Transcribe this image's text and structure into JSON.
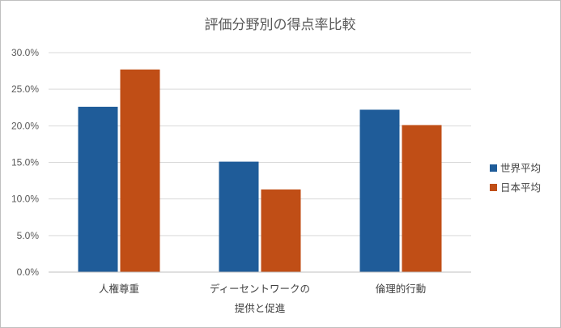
{
  "chart_data": {
    "type": "bar",
    "title": "評価分野別の得点率比較",
    "categories": [
      [
        "人権尊重"
      ],
      [
        "ディーセントワークの",
        "提供と促進"
      ],
      [
        "倫理的行動"
      ]
    ],
    "series": [
      {
        "name": "世界平均",
        "color": "#1f5c99",
        "values": [
          22.6,
          15.1,
          22.2
        ]
      },
      {
        "name": "日本平均",
        "color": "#c04e16",
        "values": [
          27.7,
          11.3,
          20.1
        ]
      }
    ],
    "ylim": [
      0,
      30
    ],
    "yticks": [
      "0.0%",
      "5.0%",
      "10.0%",
      "15.0%",
      "20.0%",
      "25.0%",
      "30.0%"
    ],
    "ytick_values": [
      0,
      5,
      10,
      15,
      20,
      25,
      30
    ],
    "grid": true,
    "legend_position": "right"
  }
}
